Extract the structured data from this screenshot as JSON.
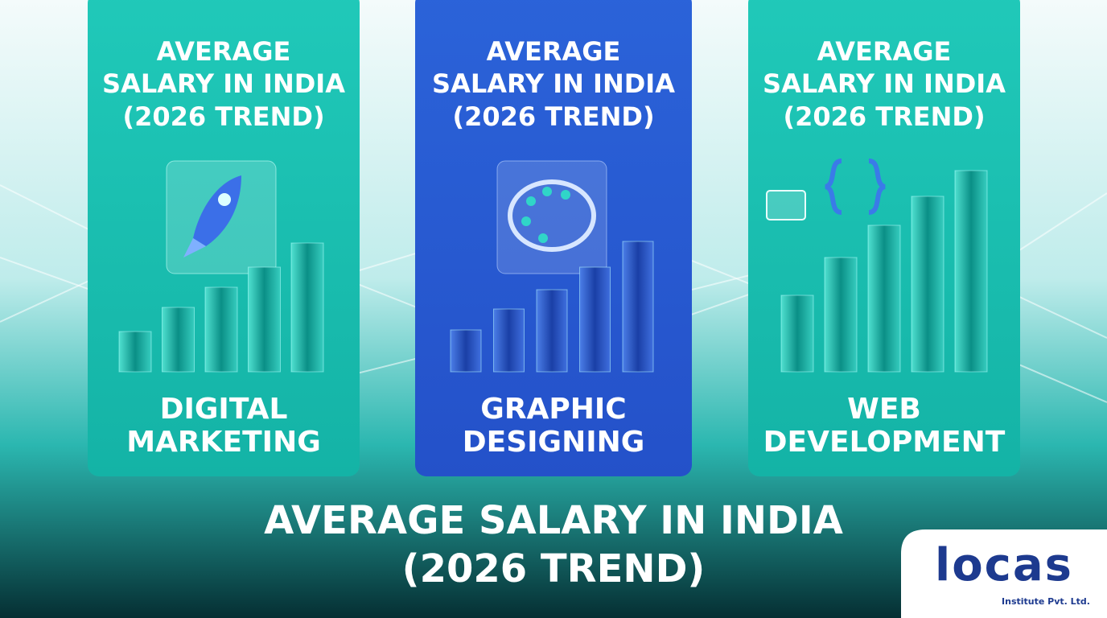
{
  "cards": [
    {
      "title": [
        "AVERAGE",
        "SALARY IN INDIA",
        "(2026 TREND)"
      ],
      "label": [
        "DIGITAL",
        "MARKETING"
      ]
    },
    {
      "title": [
        "AVERAGE",
        "SALARY IN INDIA",
        "(2026 TREND)"
      ],
      "label": [
        "GRAPHIC",
        "DESIGNING"
      ]
    },
    {
      "title": [
        "AVERAGE",
        "SALARY IN INDIA",
        "(2026 TREND)"
      ],
      "label": [
        "WEB",
        "DEVELOPMENT"
      ]
    }
  ],
  "footer": {
    "title": [
      "AVERAGE SALARY IN INDIA",
      "(2026 TREND)"
    ]
  },
  "logo": {
    "name": "locas",
    "tagline": "Institute Pvt. Ltd."
  }
}
